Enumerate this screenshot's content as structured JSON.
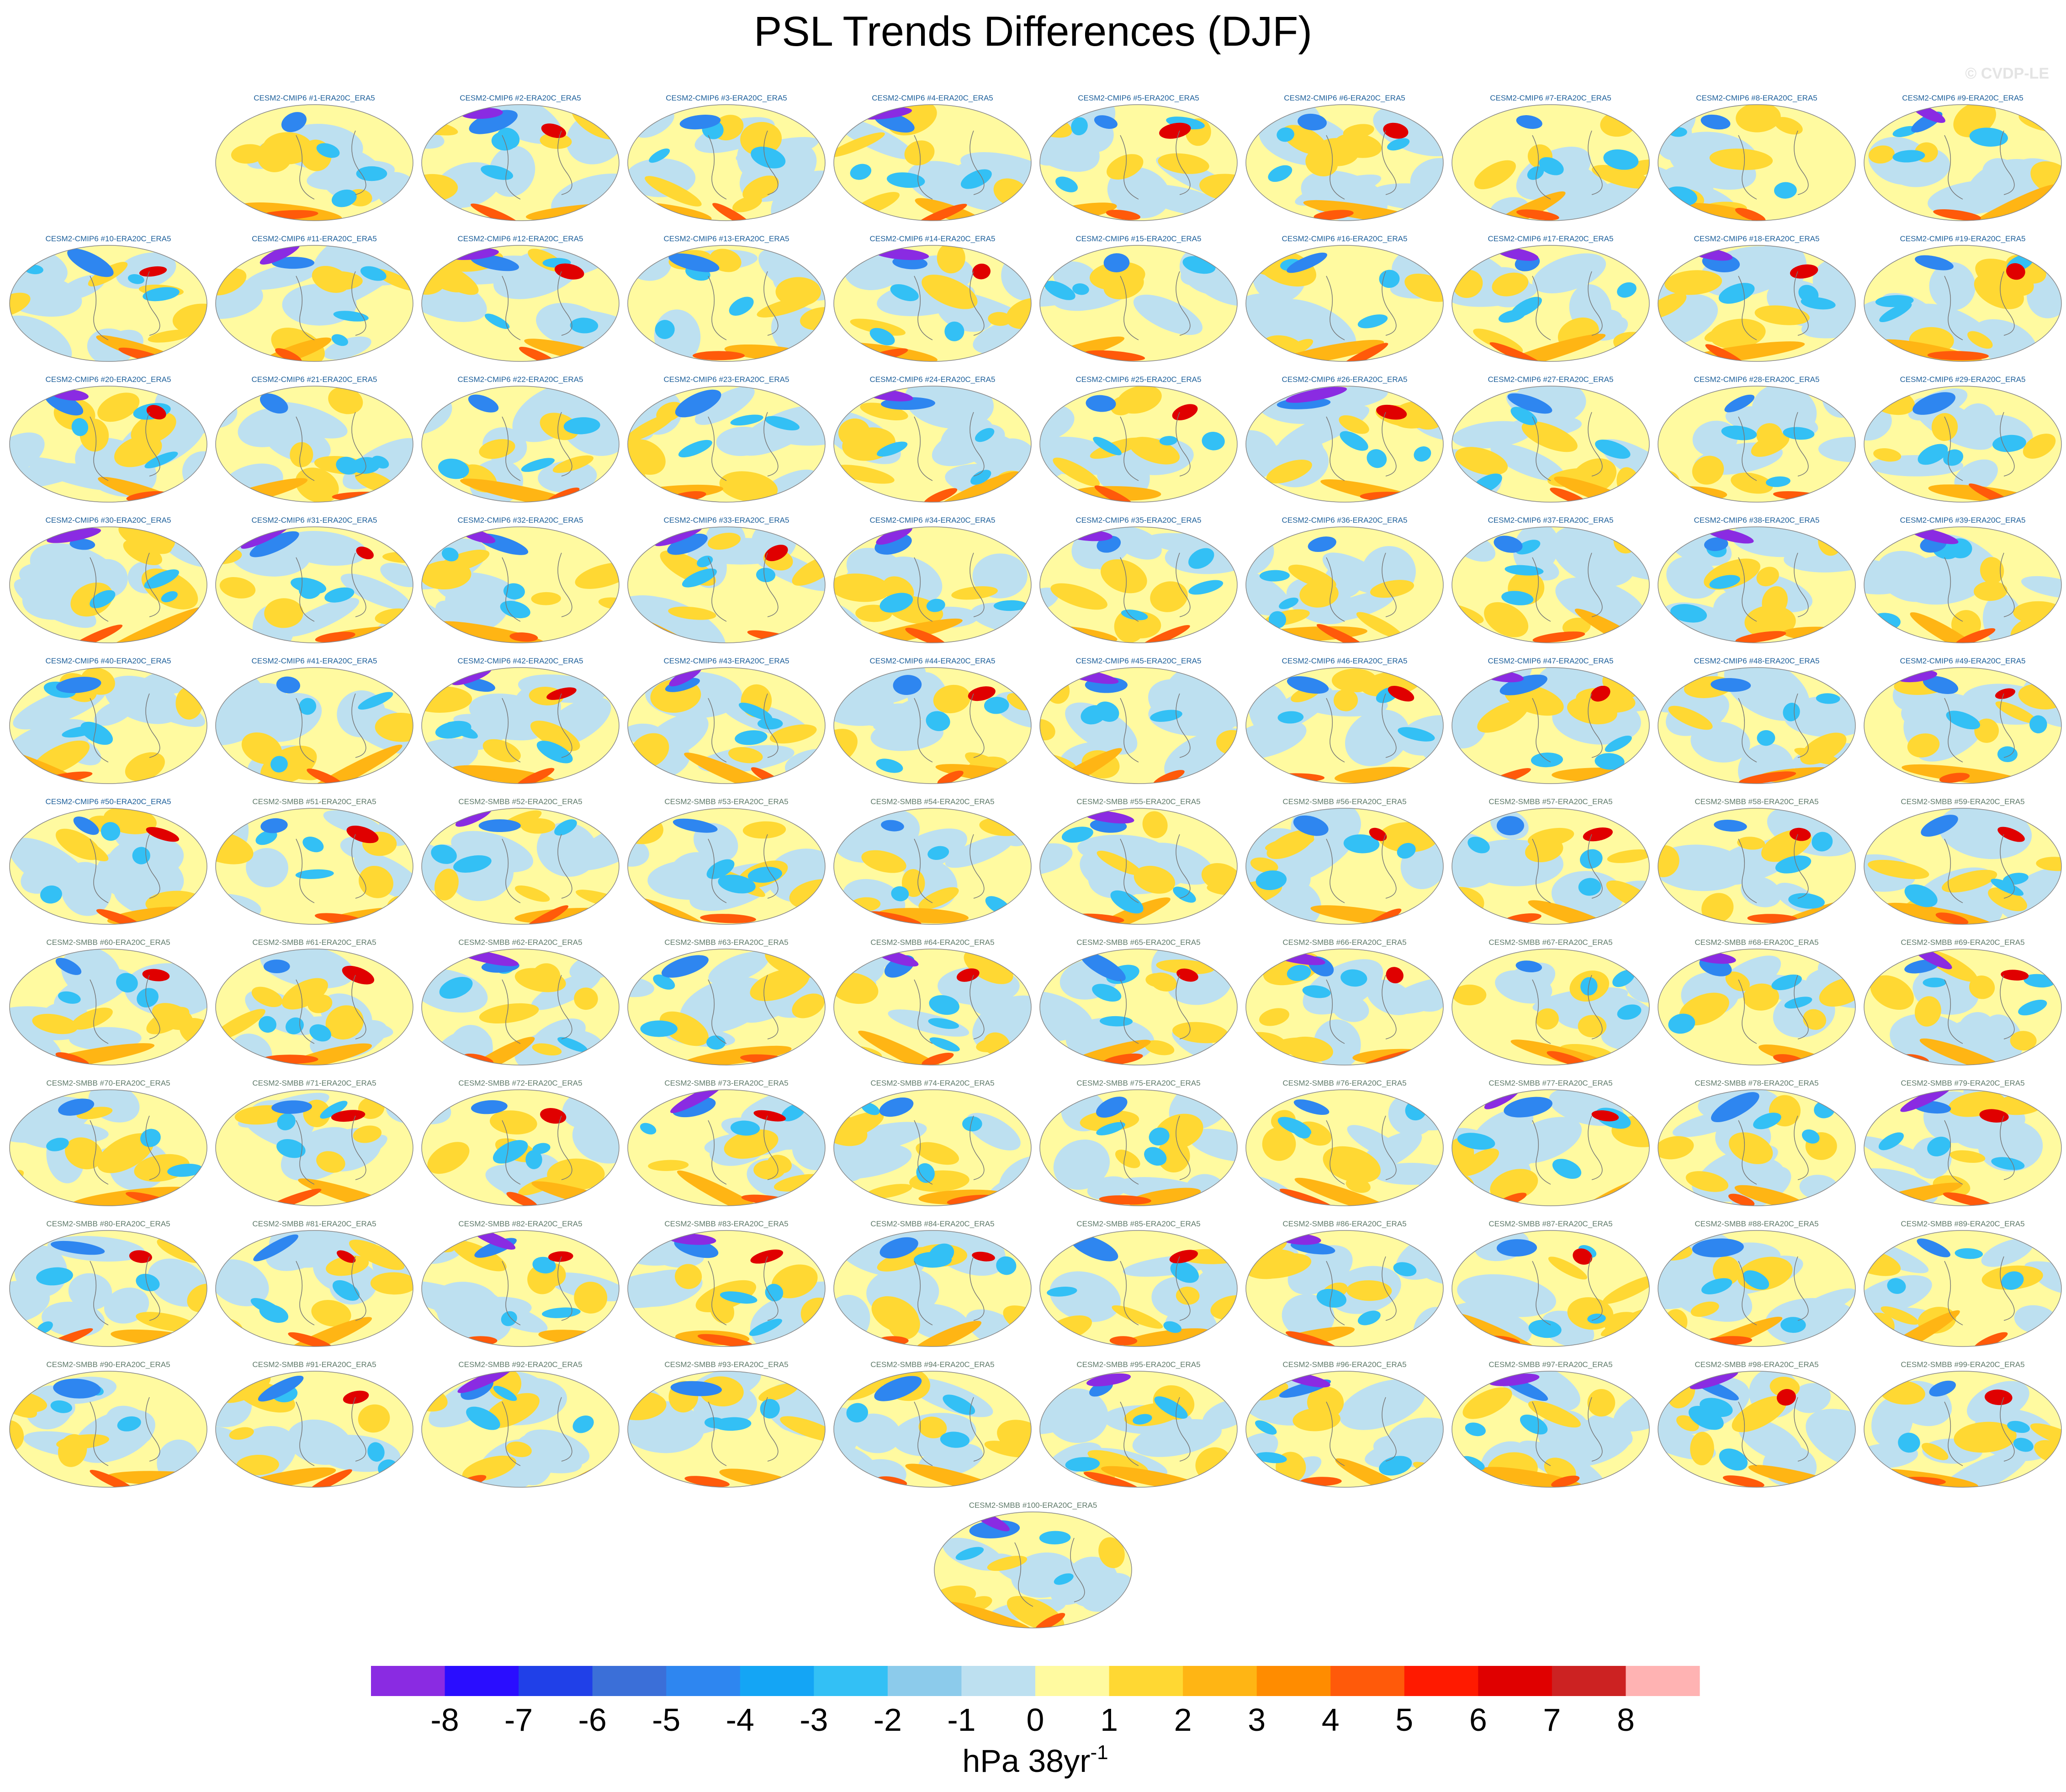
{
  "title": "PSL Trends Differences (DJF)",
  "watermark": "© CVDP-LE",
  "panels": {
    "cmip6": [
      "CESM2-CMIP6 #1-ERA20C_ERA5",
      "CESM2-CMIP6 #2-ERA20C_ERA5",
      "CESM2-CMIP6 #3-ERA20C_ERA5",
      "CESM2-CMIP6 #4-ERA20C_ERA5",
      "CESM2-CMIP6 #5-ERA20C_ERA5",
      "CESM2-CMIP6 #6-ERA20C_ERA5",
      "CESM2-CMIP6 #7-ERA20C_ERA5",
      "CESM2-CMIP6 #8-ERA20C_ERA5",
      "CESM2-CMIP6 #9-ERA20C_ERA5",
      "CESM2-CMIP6 #10-ERA20C_ERA5",
      "CESM2-CMIP6 #11-ERA20C_ERA5",
      "CESM2-CMIP6 #12-ERA20C_ERA5",
      "CESM2-CMIP6 #13-ERA20C_ERA5",
      "CESM2-CMIP6 #14-ERA20C_ERA5",
      "CESM2-CMIP6 #15-ERA20C_ERA5",
      "CESM2-CMIP6 #16-ERA20C_ERA5",
      "CESM2-CMIP6 #17-ERA20C_ERA5",
      "CESM2-CMIP6 #18-ERA20C_ERA5",
      "CESM2-CMIP6 #19-ERA20C_ERA5",
      "CESM2-CMIP6 #20-ERA20C_ERA5",
      "CESM2-CMIP6 #21-ERA20C_ERA5",
      "CESM2-CMIP6 #22-ERA20C_ERA5",
      "CESM2-CMIP6 #23-ERA20C_ERA5",
      "CESM2-CMIP6 #24-ERA20C_ERA5",
      "CESM2-CMIP6 #25-ERA20C_ERA5",
      "CESM2-CMIP6 #26-ERA20C_ERA5",
      "CESM2-CMIP6 #27-ERA20C_ERA5",
      "CESM2-CMIP6 #28-ERA20C_ERA5",
      "CESM2-CMIP6 #29-ERA20C_ERA5",
      "CESM2-CMIP6 #30-ERA20C_ERA5",
      "CESM2-CMIP6 #31-ERA20C_ERA5",
      "CESM2-CMIP6 #32-ERA20C_ERA5",
      "CESM2-CMIP6 #33-ERA20C_ERA5",
      "CESM2-CMIP6 #34-ERA20C_ERA5",
      "CESM2-CMIP6 #35-ERA20C_ERA5",
      "CESM2-CMIP6 #36-ERA20C_ERA5",
      "CESM2-CMIP6 #37-ERA20C_ERA5",
      "CESM2-CMIP6 #38-ERA20C_ERA5",
      "CESM2-CMIP6 #39-ERA20C_ERA5",
      "CESM2-CMIP6 #40-ERA20C_ERA5",
      "CESM2-CMIP6 #41-ERA20C_ERA5",
      "CESM2-CMIP6 #42-ERA20C_ERA5",
      "CESM2-CMIP6 #43-ERA20C_ERA5",
      "CESM2-CMIP6 #44-ERA20C_ERA5",
      "CESM2-CMIP6 #45-ERA20C_ERA5",
      "CESM2-CMIP6 #46-ERA20C_ERA5",
      "CESM2-CMIP6 #47-ERA20C_ERA5",
      "CESM2-CMIP6 #48-ERA20C_ERA5",
      "CESM2-CMIP6 #49-ERA20C_ERA5",
      "CESM2-CMIP6 #50-ERA20C_ERA5"
    ],
    "smbb": [
      "CESM2-SMBB #51-ERA20C_ERA5",
      "CESM2-SMBB #52-ERA20C_ERA5",
      "CESM2-SMBB #53-ERA20C_ERA5",
      "CESM2-SMBB #54-ERA20C_ERA5",
      "CESM2-SMBB #55-ERA20C_ERA5",
      "CESM2-SMBB #56-ERA20C_ERA5",
      "CESM2-SMBB #57-ERA20C_ERA5",
      "CESM2-SMBB #58-ERA20C_ERA5",
      "CESM2-SMBB #59-ERA20C_ERA5",
      "CESM2-SMBB #60-ERA20C_ERA5",
      "CESM2-SMBB #61-ERA20C_ERA5",
      "CESM2-SMBB #62-ERA20C_ERA5",
      "CESM2-SMBB #63-ERA20C_ERA5",
      "CESM2-SMBB #64-ERA20C_ERA5",
      "CESM2-SMBB #65-ERA20C_ERA5",
      "CESM2-SMBB #66-ERA20C_ERA5",
      "CESM2-SMBB #67-ERA20C_ERA5",
      "CESM2-SMBB #68-ERA20C_ERA5",
      "CESM2-SMBB #69-ERA20C_ERA5",
      "CESM2-SMBB #70-ERA20C_ERA5",
      "CESM2-SMBB #71-ERA20C_ERA5",
      "CESM2-SMBB #72-ERA20C_ERA5",
      "CESM2-SMBB #73-ERA20C_ERA5",
      "CESM2-SMBB #74-ERA20C_ERA5",
      "CESM2-SMBB #75-ERA20C_ERA5",
      "CESM2-SMBB #76-ERA20C_ERA5",
      "CESM2-SMBB #77-ERA20C_ERA5",
      "CESM2-SMBB #78-ERA20C_ERA5",
      "CESM2-SMBB #79-ERA20C_ERA5",
      "CESM2-SMBB #80-ERA20C_ERA5",
      "CESM2-SMBB #81-ERA20C_ERA5",
      "CESM2-SMBB #82-ERA20C_ERA5",
      "CESM2-SMBB #83-ERA20C_ERA5",
      "CESM2-SMBB #84-ERA20C_ERA5",
      "CESM2-SMBB #85-ERA20C_ERA5",
      "CESM2-SMBB #86-ERA20C_ERA5",
      "CESM2-SMBB #87-ERA20C_ERA5",
      "CESM2-SMBB #88-ERA20C_ERA5",
      "CESM2-SMBB #89-ERA20C_ERA5",
      "CESM2-SMBB #90-ERA20C_ERA5",
      "CESM2-SMBB #91-ERA20C_ERA5",
      "CESM2-SMBB #92-ERA20C_ERA5",
      "CESM2-SMBB #93-ERA20C_ERA5",
      "CESM2-SMBB #94-ERA20C_ERA5",
      "CESM2-SMBB #95-ERA20C_ERA5",
      "CESM2-SMBB #96-ERA20C_ERA5",
      "CESM2-SMBB #97-ERA20C_ERA5",
      "CESM2-SMBB #98-ERA20C_ERA5",
      "CESM2-SMBB #99-ERA20C_ERA5",
      "CESM2-SMBB #100-ERA20C_ERA5"
    ]
  },
  "colorbar": {
    "colors": [
      "#8a2be2",
      "#2a0dff",
      "#2040e8",
      "#3b6fd8",
      "#2e86f0",
      "#14a5f5",
      "#33c0f5",
      "#8ccbeb",
      "#bde0f0",
      "#fffaa0",
      "#ffd833",
      "#ffb514",
      "#ff8c00",
      "#ff5a0a",
      "#ff1a00",
      "#e00000",
      "#cc2222",
      "#ffb3b3"
    ],
    "labels": [
      -8,
      -7,
      -6,
      -5,
      -4,
      -3,
      -2,
      -1,
      0,
      1,
      2,
      3,
      4,
      5,
      6,
      7,
      8
    ],
    "unit": {
      "base": "hPa 38yr",
      "exponent": "-1"
    }
  }
}
